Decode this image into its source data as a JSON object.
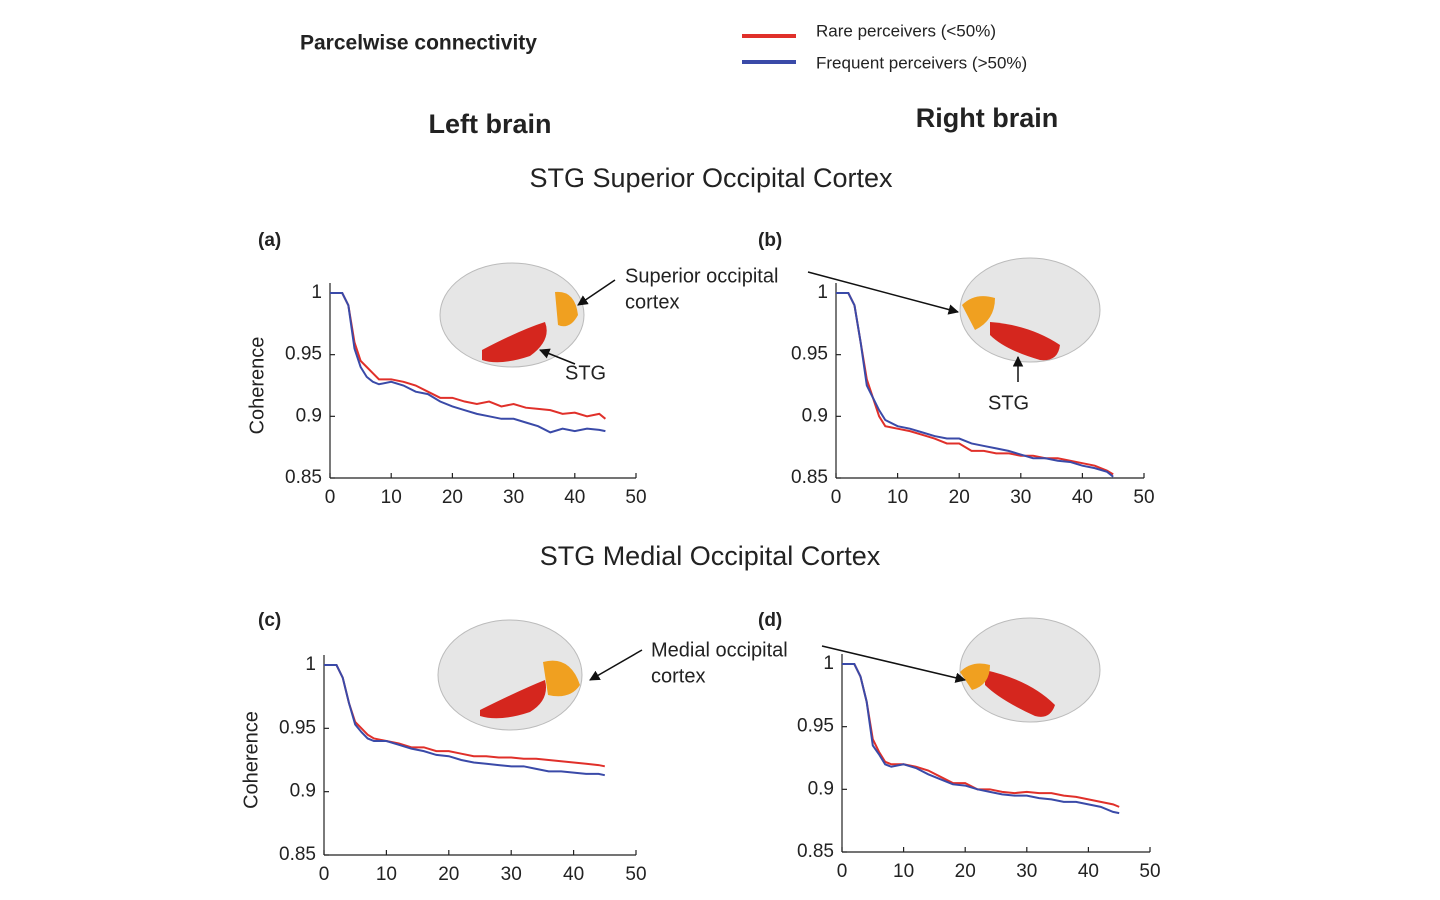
{
  "figure_title": "Parcelwise connectivity",
  "columns": [
    "Left brain",
    "Right brain"
  ],
  "sections": [
    "STG Superior Occipital Cortex",
    "STG Medial Occipital Cortex"
  ],
  "annotations": {
    "superior_occipital": [
      "Superior occipital",
      "cortex"
    ],
    "stg_left": "STG",
    "stg_right": "STG",
    "medial_occipital": [
      "Medial occipital",
      "cortex"
    ]
  },
  "chart_data": [
    {
      "type": "line",
      "label": "(a)",
      "ylabel": "Coherence",
      "x": [
        0,
        1,
        2,
        3,
        4,
        5,
        6,
        7,
        8,
        10,
        12,
        14,
        16,
        18,
        20,
        22,
        24,
        26,
        28,
        30,
        32,
        34,
        36,
        38,
        40,
        42,
        44,
        45
      ],
      "series": [
        {
          "name": "Rare perceivers (<50%)",
          "color": "#e0302a",
          "values": [
            1,
            1,
            1,
            0.99,
            0.96,
            0.945,
            0.94,
            0.935,
            0.93,
            0.93,
            0.928,
            0.925,
            0.92,
            0.915,
            0.915,
            0.912,
            0.91,
            0.912,
            0.908,
            0.91,
            0.907,
            0.906,
            0.905,
            0.902,
            0.903,
            0.9,
            0.902,
            0.898
          ]
        },
        {
          "name": "Frequent perceivers (>50%)",
          "color": "#3a4aa8",
          "values": [
            1,
            1,
            1,
            0.99,
            0.955,
            0.94,
            0.932,
            0.928,
            0.926,
            0.928,
            0.925,
            0.92,
            0.918,
            0.912,
            0.908,
            0.905,
            0.902,
            0.9,
            0.898,
            0.898,
            0.895,
            0.892,
            0.887,
            0.89,
            0.888,
            0.89,
            0.889,
            0.888
          ]
        }
      ],
      "xlim": [
        0,
        50
      ],
      "xticks": [
        0,
        10,
        20,
        30,
        40,
        50
      ],
      "ylim": [
        0.85,
        1
      ],
      "yticks": [
        0.85,
        0.9,
        0.95,
        1
      ]
    },
    {
      "type": "line",
      "label": "(b)",
      "x": [
        0,
        1,
        2,
        3,
        4,
        5,
        6,
        7,
        8,
        10,
        12,
        14,
        16,
        18,
        20,
        22,
        24,
        26,
        28,
        30,
        32,
        34,
        36,
        38,
        40,
        42,
        44,
        45
      ],
      "series": [
        {
          "name": "Rare perceivers (<50%)",
          "color": "#e0302a",
          "values": [
            1,
            1,
            1,
            0.99,
            0.96,
            0.93,
            0.915,
            0.9,
            0.892,
            0.89,
            0.888,
            0.885,
            0.882,
            0.878,
            0.878,
            0.872,
            0.872,
            0.87,
            0.87,
            0.868,
            0.868,
            0.866,
            0.866,
            0.864,
            0.862,
            0.86,
            0.856,
            0.853
          ]
        },
        {
          "name": "Frequent perceivers (>50%)",
          "color": "#3a4aa8",
          "values": [
            1,
            1,
            1,
            0.99,
            0.96,
            0.925,
            0.915,
            0.905,
            0.897,
            0.892,
            0.89,
            0.887,
            0.884,
            0.882,
            0.882,
            0.878,
            0.876,
            0.874,
            0.872,
            0.869,
            0.866,
            0.866,
            0.864,
            0.863,
            0.86,
            0.858,
            0.855,
            0.851
          ]
        }
      ],
      "xlim": [
        0,
        50
      ],
      "xticks": [
        0,
        10,
        20,
        30,
        40,
        50
      ],
      "ylim": [
        0.85,
        1
      ],
      "yticks": [
        0.85,
        0.9,
        0.95,
        1
      ]
    },
    {
      "type": "line",
      "label": "(c)",
      "ylabel": "Coherence",
      "x": [
        0,
        1,
        2,
        3,
        4,
        5,
        6,
        7,
        8,
        10,
        12,
        14,
        16,
        18,
        20,
        22,
        24,
        26,
        28,
        30,
        32,
        34,
        36,
        38,
        40,
        42,
        44,
        45
      ],
      "series": [
        {
          "name": "Rare perceivers (<50%)",
          "color": "#e0302a",
          "values": [
            1,
            1,
            1,
            0.99,
            0.97,
            0.955,
            0.95,
            0.945,
            0.942,
            0.94,
            0.938,
            0.935,
            0.935,
            0.932,
            0.932,
            0.93,
            0.928,
            0.928,
            0.927,
            0.927,
            0.926,
            0.926,
            0.925,
            0.924,
            0.923,
            0.922,
            0.921,
            0.92
          ]
        },
        {
          "name": "Frequent perceivers (>50%)",
          "color": "#3a4aa8",
          "values": [
            1,
            1,
            1,
            0.99,
            0.97,
            0.953,
            0.947,
            0.942,
            0.94,
            0.94,
            0.937,
            0.934,
            0.932,
            0.929,
            0.928,
            0.925,
            0.923,
            0.922,
            0.921,
            0.92,
            0.92,
            0.918,
            0.916,
            0.916,
            0.915,
            0.914,
            0.914,
            0.913
          ]
        }
      ],
      "xlim": [
        0,
        50
      ],
      "xticks": [
        0,
        10,
        20,
        30,
        40,
        50
      ],
      "ylim": [
        0.85,
        1
      ],
      "yticks": [
        0.85,
        0.9,
        0.95,
        1
      ]
    },
    {
      "type": "line",
      "label": "(d)",
      "x": [
        0,
        1,
        2,
        3,
        4,
        5,
        6,
        7,
        8,
        10,
        12,
        14,
        16,
        18,
        20,
        22,
        24,
        26,
        28,
        30,
        32,
        34,
        36,
        38,
        40,
        42,
        44,
        45
      ],
      "series": [
        {
          "name": "Rare perceivers (<50%)",
          "color": "#e0302a",
          "values": [
            1,
            1,
            1,
            0.99,
            0.97,
            0.94,
            0.93,
            0.922,
            0.92,
            0.92,
            0.918,
            0.915,
            0.91,
            0.905,
            0.905,
            0.9,
            0.9,
            0.898,
            0.897,
            0.898,
            0.897,
            0.897,
            0.895,
            0.894,
            0.892,
            0.89,
            0.888,
            0.886
          ]
        },
        {
          "name": "Frequent perceivers (>50%)",
          "color": "#3a4aa8",
          "values": [
            1,
            1,
            1,
            0.99,
            0.97,
            0.935,
            0.928,
            0.92,
            0.918,
            0.92,
            0.917,
            0.912,
            0.908,
            0.904,
            0.903,
            0.9,
            0.898,
            0.896,
            0.895,
            0.895,
            0.893,
            0.892,
            0.89,
            0.89,
            0.888,
            0.886,
            0.882,
            0.881
          ]
        }
      ],
      "xlim": [
        0,
        50
      ],
      "xticks": [
        0,
        10,
        20,
        30,
        40,
        50
      ],
      "ylim": [
        0.85,
        1
      ],
      "yticks": [
        0.85,
        0.9,
        0.95,
        1
      ]
    }
  ]
}
